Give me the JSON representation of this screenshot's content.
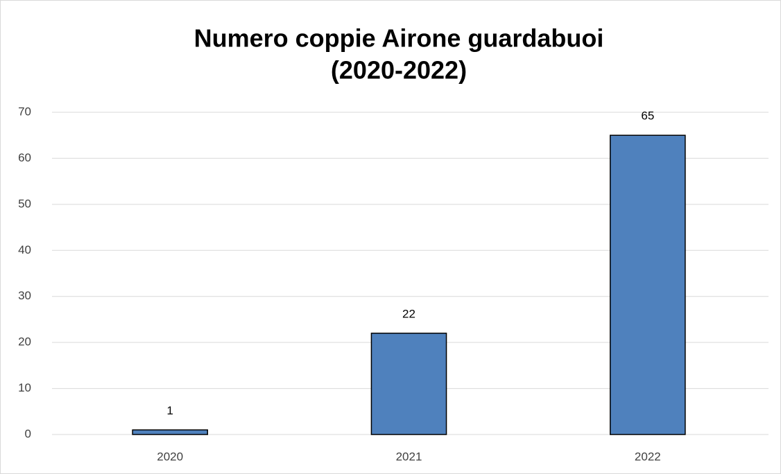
{
  "chart_data": {
    "type": "bar",
    "title": [
      "Numero coppie Airone guardabuoi",
      "(2020-2022)"
    ],
    "categories": [
      "2020",
      "2021",
      "2022"
    ],
    "values": [
      1,
      22,
      65
    ],
    "color": "#4f81bd",
    "ylim": [
      0,
      70
    ],
    "yticks": [
      0,
      10,
      20,
      30,
      40,
      50,
      60,
      70
    ],
    "grid": true
  }
}
